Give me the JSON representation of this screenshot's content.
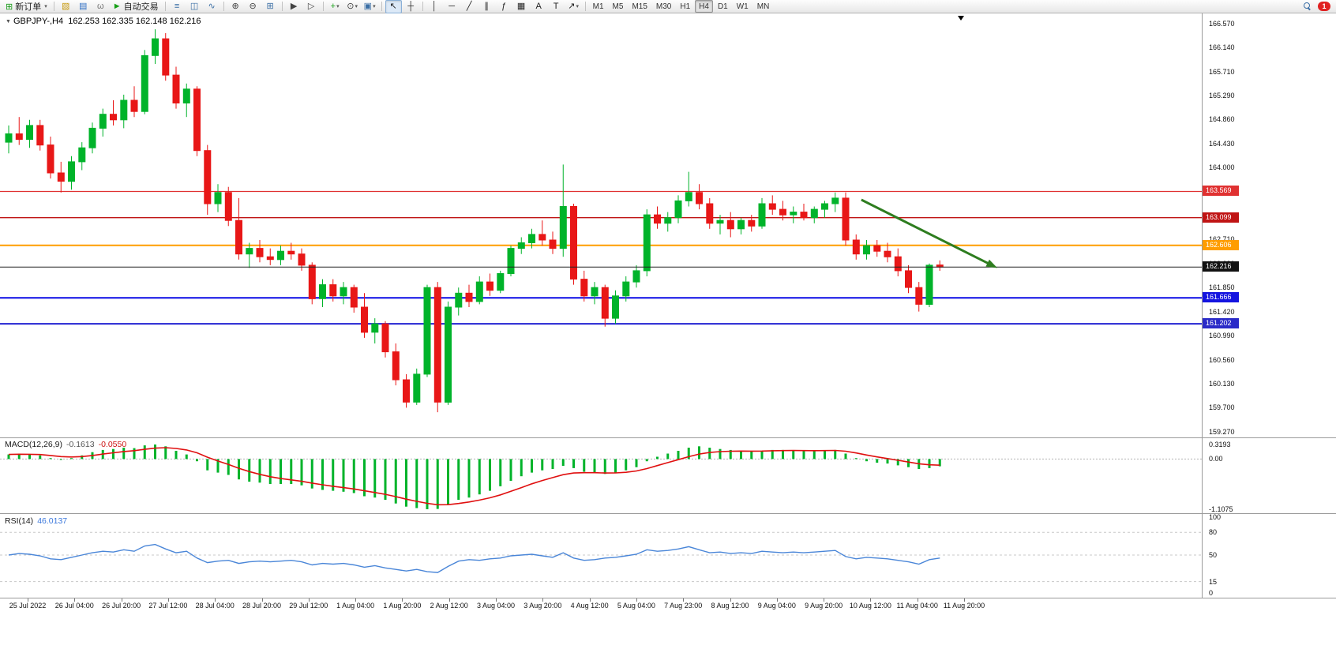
{
  "toolbar": {
    "notification_count": "1",
    "active_timeframe": "H4",
    "timeframes": [
      "M1",
      "M5",
      "M15",
      "M30",
      "H1",
      "H4",
      "D1",
      "W1",
      "MN"
    ],
    "items": [
      {
        "type": "btn",
        "name": "new-order-button",
        "glyph": "⊞",
        "gcolor": "#1a9c1a",
        "label": "新订单",
        "caret": true
      },
      {
        "type": "sep"
      },
      {
        "type": "icon",
        "name": "new-chart-icon",
        "glyph": "▧",
        "color": "#c89b12"
      },
      {
        "type": "icon",
        "name": "profiles-icon",
        "glyph": "▤",
        "color": "#2f6fc4"
      },
      {
        "type": "icon",
        "name": "scripts-icon",
        "glyph": "ω",
        "color": "#777777"
      },
      {
        "type": "btn",
        "name": "autotrading-button",
        "glyph": "►",
        "gcolor": "#18a018",
        "label": "自动交易",
        "caret": false
      },
      {
        "type": "sep"
      },
      {
        "type": "icon",
        "name": "bars-chart-icon",
        "glyph": "≡",
        "color": "#3a6ea5"
      },
      {
        "type": "icon",
        "name": "candlestick-chart-icon",
        "glyph": "◫",
        "color": "#3a6ea5"
      },
      {
        "type": "icon",
        "name": "line-chart-icon",
        "glyph": "∿",
        "color": "#3a6ea5"
      },
      {
        "type": "sep"
      },
      {
        "type": "icon",
        "name": "zoom-in-icon",
        "glyph": "⊕",
        "color": "#444444"
      },
      {
        "type": "icon",
        "name": "zoom-out-icon",
        "glyph": "⊖",
        "color": "#444444"
      },
      {
        "type": "icon",
        "name": "tile-windows-icon",
        "glyph": "⊞",
        "color": "#3a6ea5"
      },
      {
        "type": "sep"
      },
      {
        "type": "icon",
        "name": "auto-scroll-icon",
        "glyph": "▶",
        "color": "#444444"
      },
      {
        "type": "icon",
        "name": "chart-shift-icon",
        "glyph": "▷",
        "color": "#444444"
      },
      {
        "type": "sep"
      },
      {
        "type": "icon",
        "name": "indicators-icon",
        "glyph": "+",
        "color": "#18a018",
        "caret": true
      },
      {
        "type": "icon",
        "name": "periods-icon",
        "glyph": "⊙",
        "color": "#444444",
        "caret": true
      },
      {
        "type": "icon",
        "name": "templates-icon",
        "glyph": "▣",
        "color": "#3a6ea5",
        "caret": true
      },
      {
        "type": "sep"
      },
      {
        "type": "icon",
        "name": "cursor-icon",
        "glyph": "↖",
        "color": "#222222",
        "active": true
      },
      {
        "type": "icon",
        "name": "crosshair-icon",
        "glyph": "┼",
        "color": "#222222"
      },
      {
        "type": "sep"
      },
      {
        "type": "icon",
        "name": "vertical-line-icon",
        "glyph": "│",
        "color": "#222222"
      },
      {
        "type": "icon",
        "name": "horizontal-line-icon",
        "glyph": "─",
        "color": "#222222"
      },
      {
        "type": "icon",
        "name": "trendline-icon",
        "glyph": "╱",
        "color": "#222222"
      },
      {
        "type": "icon",
        "name": "equidistant-channel-icon",
        "glyph": "∥",
        "color": "#222222"
      },
      {
        "type": "icon",
        "name": "fibonacci-icon",
        "glyph": "ƒ",
        "color": "#222222"
      },
      {
        "type": "icon",
        "name": "shapes-icon",
        "glyph": "▦",
        "color": "#222222"
      },
      {
        "type": "icon",
        "name": "text-icon",
        "glyph": "A",
        "color": "#222222"
      },
      {
        "type": "icon",
        "name": "text-label-icon",
        "glyph": "T",
        "color": "#222222"
      },
      {
        "type": "icon",
        "name": "arrows-icon",
        "glyph": "↗",
        "color": "#222222",
        "caret": true
      },
      {
        "type": "sep"
      }
    ]
  },
  "header": {
    "symbol": "GBPJPY-,H4",
    "ohlc": "162.253 162.335 162.148 162.216"
  },
  "indicators": {
    "macd": {
      "label": "MACD(12,26,9)",
      "value_main": "-0.1613",
      "value_signal": "-0.0550",
      "scale": [
        {
          "label": "0.3193",
          "value": 0.3193
        },
        {
          "label": "0.00",
          "value": 0
        },
        {
          "label": "-1.1075",
          "value": -1.1075
        }
      ]
    },
    "rsi": {
      "label": "RSI(14)",
      "value": "46.0137",
      "scale": [
        {
          "label": "100",
          "value": 100
        },
        {
          "label": "80",
          "value": 80
        },
        {
          "label": "50",
          "value": 50
        },
        {
          "label": "15",
          "value": 15
        },
        {
          "label": "0",
          "value": 0
        }
      ],
      "level_lines": [
        80,
        50,
        15
      ]
    }
  },
  "price_scale": {
    "gridline_labels": [
      "166.570",
      "166.140",
      "165.710",
      "165.290",
      "164.860",
      "164.430",
      "164.000",
      "163.570",
      "163.140",
      "162.710",
      "162.280",
      "161.850",
      "161.420",
      "160.990",
      "160.560",
      "160.130",
      "159.700",
      "159.270"
    ],
    "tags": [
      {
        "price": 163.569,
        "label": "163.569",
        "color": "#e03131"
      },
      {
        "price": 163.099,
        "label": "163.099",
        "color": "#c01414"
      },
      {
        "price": 162.606,
        "label": "162.606",
        "color": "#ff9d00"
      },
      {
        "price": 162.216,
        "label": "162.216",
        "color": "#111111"
      },
      {
        "price": 161.666,
        "label": "161.666",
        "color": "#1414e0"
      },
      {
        "price": 161.202,
        "label": "161.202",
        "color": "#2a2ac8"
      }
    ]
  },
  "time_axis": {
    "labels": [
      "25 Jul 2022",
      "26 Jul 04:00",
      "26 Jul 20:00",
      "27 Jul 12:00",
      "28 Jul 04:00",
      "28 Jul 20:00",
      "29 Jul 12:00",
      "1 Aug 04:00",
      "1 Aug 20:00",
      "2 Aug 12:00",
      "3 Aug 04:00",
      "3 Aug 20:00",
      "4 Aug 12:00",
      "5 Aug 04:00",
      "7 Aug 23:00",
      "8 Aug 12:00",
      "9 Aug 04:00",
      "9 Aug 20:00",
      "10 Aug 12:00",
      "11 Aug 04:00",
      "11 Aug 20:00"
    ]
  },
  "colors": {
    "bull": "#00b32a",
    "bear": "#e81717",
    "macd_histogram": "#00b32a",
    "macd_signal": "#e01010",
    "rsi_line": "#4a86d8"
  },
  "chart_data": {
    "type": "candlestick",
    "symbol": "GBPJPY-",
    "period": "H4",
    "y_range": [
      159.27,
      166.57
    ],
    "current_price": 162.216,
    "levels": [
      {
        "price": 163.569,
        "color": "#e03131",
        "width": 1.3
      },
      {
        "price": 163.099,
        "color": "#c01414",
        "width": 1.3
      },
      {
        "price": 162.606,
        "color": "#ff9d00",
        "width": 2
      },
      {
        "price": 161.666,
        "color": "#0a0ae6",
        "width": 2
      },
      {
        "price": 161.202,
        "color": "#2323d2",
        "width": 2
      }
    ],
    "arrow": {
      "from_index": 81.5,
      "from_price": 163.42,
      "to_index": 94.5,
      "to_price": 162.2,
      "color": "#2e7d1f"
    },
    "ohlc": [
      [
        164.45,
        164.75,
        164.25,
        164.6
      ],
      [
        164.6,
        164.9,
        164.4,
        164.5
      ],
      [
        164.5,
        164.85,
        164.35,
        164.75
      ],
      [
        164.75,
        164.85,
        164.3,
        164.4
      ],
      [
        164.4,
        164.55,
        163.8,
        163.9
      ],
      [
        163.9,
        164.1,
        163.55,
        163.75
      ],
      [
        163.75,
        164.2,
        163.6,
        164.1
      ],
      [
        164.1,
        164.45,
        163.95,
        164.35
      ],
      [
        164.35,
        164.8,
        164.25,
        164.7
      ],
      [
        164.7,
        165.05,
        164.55,
        164.95
      ],
      [
        164.95,
        165.2,
        164.75,
        164.85
      ],
      [
        164.85,
        165.3,
        164.7,
        165.2
      ],
      [
        165.2,
        165.45,
        164.9,
        165.0
      ],
      [
        165.0,
        166.1,
        164.95,
        166.0
      ],
      [
        166.0,
        166.47,
        165.85,
        166.3
      ],
      [
        166.3,
        166.4,
        165.55,
        165.65
      ],
      [
        165.65,
        165.8,
        165.05,
        165.15
      ],
      [
        165.15,
        165.5,
        164.9,
        165.4
      ],
      [
        165.4,
        165.45,
        164.2,
        164.3
      ],
      [
        164.3,
        164.4,
        163.15,
        163.35
      ],
      [
        163.35,
        163.7,
        163.2,
        163.55
      ],
      [
        163.55,
        163.65,
        162.95,
        163.05
      ],
      [
        163.05,
        163.45,
        162.35,
        162.45
      ],
      [
        162.45,
        162.65,
        162.2,
        162.55
      ],
      [
        162.55,
        162.7,
        162.3,
        162.4
      ],
      [
        162.4,
        162.55,
        162.25,
        162.35
      ],
      [
        162.35,
        162.6,
        162.25,
        162.5
      ],
      [
        162.5,
        162.65,
        162.35,
        162.45
      ],
      [
        162.45,
        162.55,
        162.15,
        162.25
      ],
      [
        162.25,
        162.3,
        161.55,
        161.65
      ],
      [
        161.65,
        162.0,
        161.5,
        161.9
      ],
      [
        161.9,
        162.0,
        161.6,
        161.7
      ],
      [
        161.7,
        161.95,
        161.55,
        161.85
      ],
      [
        161.85,
        161.9,
        161.4,
        161.5
      ],
      [
        161.5,
        161.75,
        160.95,
        161.05
      ],
      [
        161.05,
        161.3,
        160.85,
        161.2
      ],
      [
        161.2,
        161.25,
        160.6,
        160.7
      ],
      [
        160.7,
        160.85,
        160.1,
        160.2
      ],
      [
        160.2,
        160.3,
        159.7,
        159.8
      ],
      [
        159.8,
        160.4,
        159.75,
        160.3
      ],
      [
        160.3,
        161.9,
        160.25,
        161.85
      ],
      [
        161.85,
        161.95,
        159.62,
        159.8
      ],
      [
        159.8,
        161.6,
        159.75,
        161.5
      ],
      [
        161.5,
        161.85,
        161.35,
        161.75
      ],
      [
        161.75,
        161.9,
        161.5,
        161.6
      ],
      [
        161.6,
        162.05,
        161.55,
        161.95
      ],
      [
        161.95,
        162.1,
        161.7,
        161.8
      ],
      [
        161.8,
        162.15,
        161.75,
        162.1
      ],
      [
        162.1,
        162.6,
        162.05,
        162.55
      ],
      [
        162.55,
        162.75,
        162.45,
        162.65
      ],
      [
        162.65,
        162.9,
        162.55,
        162.8
      ],
      [
        162.8,
        163.05,
        162.6,
        162.7
      ],
      [
        162.7,
        162.85,
        162.45,
        162.55
      ],
      [
        162.55,
        164.05,
        162.4,
        163.3
      ],
      [
        163.3,
        163.35,
        161.9,
        162.0
      ],
      [
        162.0,
        162.15,
        161.6,
        161.7
      ],
      [
        161.7,
        161.95,
        161.55,
        161.85
      ],
      [
        161.85,
        161.9,
        161.15,
        161.3
      ],
      [
        161.3,
        161.8,
        161.2,
        161.7
      ],
      [
        161.7,
        162.05,
        161.6,
        161.95
      ],
      [
        161.95,
        162.25,
        161.85,
        162.15
      ],
      [
        162.15,
        163.25,
        162.05,
        163.15
      ],
      [
        163.15,
        163.3,
        162.9,
        163.0
      ],
      [
        163.0,
        163.2,
        162.85,
        163.1
      ],
      [
        163.1,
        163.5,
        163.0,
        163.4
      ],
      [
        163.4,
        163.92,
        163.3,
        163.55
      ],
      [
        163.55,
        163.7,
        163.25,
        163.35
      ],
      [
        163.35,
        163.45,
        162.9,
        163.0
      ],
      [
        163.0,
        163.15,
        162.8,
        163.05
      ],
      [
        163.05,
        163.2,
        162.75,
        162.9
      ],
      [
        162.9,
        163.1,
        162.8,
        163.05
      ],
      [
        163.05,
        163.15,
        162.85,
        162.95
      ],
      [
        162.95,
        163.45,
        162.9,
        163.35
      ],
      [
        163.35,
        163.5,
        163.15,
        163.25
      ],
      [
        163.25,
        163.4,
        163.05,
        163.15
      ],
      [
        163.15,
        163.3,
        163.0,
        163.2
      ],
      [
        163.2,
        163.35,
        163.05,
        163.1
      ],
      [
        163.1,
        163.3,
        163.0,
        163.25
      ],
      [
        163.25,
        163.4,
        163.1,
        163.35
      ],
      [
        163.35,
        163.55,
        163.2,
        163.45
      ],
      [
        163.45,
        163.55,
        162.6,
        162.7
      ],
      [
        162.7,
        162.8,
        162.35,
        162.45
      ],
      [
        162.45,
        162.7,
        162.35,
        162.6
      ],
      [
        162.6,
        162.7,
        162.4,
        162.5
      ],
      [
        162.5,
        162.65,
        162.3,
        162.4
      ],
      [
        162.4,
        162.55,
        162.05,
        162.15
      ],
      [
        162.15,
        162.25,
        161.75,
        161.85
      ],
      [
        161.85,
        161.95,
        161.42,
        161.55
      ],
      [
        161.55,
        162.28,
        161.5,
        162.25
      ],
      [
        162.253,
        162.335,
        162.148,
        162.216
      ]
    ],
    "macd_histogram": [
      0.1,
      0.12,
      0.1,
      0.08,
      0.02,
      -0.02,
      0.02,
      0.08,
      0.15,
      0.2,
      0.22,
      0.25,
      0.24,
      0.3,
      0.32,
      0.28,
      0.18,
      0.1,
      -0.05,
      -0.25,
      -0.3,
      -0.35,
      -0.45,
      -0.5,
      -0.52,
      -0.55,
      -0.55,
      -0.55,
      -0.58,
      -0.65,
      -0.68,
      -0.7,
      -0.72,
      -0.75,
      -0.82,
      -0.85,
      -0.9,
      -0.98,
      -1.05,
      -1.08,
      -1.1075,
      -1.1,
      -1.0,
      -0.9,
      -0.85,
      -0.78,
      -0.7,
      -0.6,
      -0.48,
      -0.38,
      -0.3,
      -0.25,
      -0.22,
      -0.15,
      -0.2,
      -0.28,
      -0.3,
      -0.33,
      -0.3,
      -0.25,
      -0.18,
      -0.05,
      0.05,
      0.12,
      0.18,
      0.25,
      0.28,
      0.25,
      0.22,
      0.2,
      0.18,
      0.17,
      0.18,
      0.2,
      0.2,
      0.19,
      0.18,
      0.18,
      0.19,
      0.2,
      0.12,
      0.02,
      -0.05,
      -0.08,
      -0.1,
      -0.14,
      -0.18,
      -0.22,
      -0.2,
      -0.1613
    ],
    "rsi": [
      50,
      52,
      51,
      49,
      45,
      44,
      47,
      50,
      53,
      55,
      54,
      57,
      55,
      62,
      64,
      58,
      53,
      55,
      46,
      40,
      42,
      43,
      39,
      41,
      42,
      41,
      42,
      43,
      41,
      37,
      39,
      38,
      39,
      37,
      34,
      36,
      33,
      31,
      29,
      31,
      28,
      27,
      35,
      42,
      44,
      43,
      45,
      46,
      49,
      50,
      51,
      49,
      47,
      53,
      46,
      43,
      44,
      46,
      47,
      49,
      51,
      57,
      55,
      56,
      58,
      61,
      57,
      53,
      54,
      52,
      53,
      52,
      55,
      54,
      53,
      54,
      53,
      54,
      55,
      56,
      48,
      45,
      47,
      46,
      45,
      43,
      41,
      38,
      44,
      46.01
    ]
  }
}
